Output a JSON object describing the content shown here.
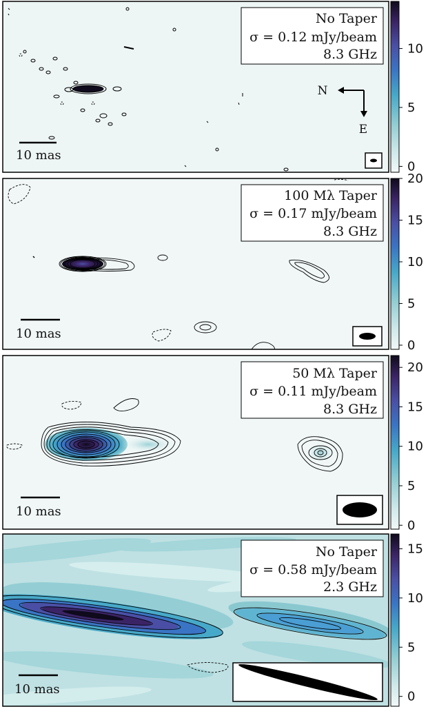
{
  "chart_data": [
    {
      "type": "heatmap",
      "panel": 1,
      "legend_lines": [
        "No Taper",
        "σ = 0.12 mJy/beam",
        "8.3 GHz"
      ],
      "scale_bar_label": "10 mas",
      "compass": {
        "north": "N",
        "east": "E"
      },
      "colorbar": {
        "ticks": [
          0,
          5,
          10
        ],
        "range": [
          -0.5,
          14
        ]
      },
      "peak_value": 13.5
    },
    {
      "type": "heatmap",
      "panel": 2,
      "legend_lines": [
        "100 Mλ Taper",
        "σ = 0.17 mJy/beam",
        "8.3 GHz"
      ],
      "scale_bar_label": "10 mas",
      "colorbar": {
        "ticks": [
          0,
          5,
          10,
          15,
          20
        ],
        "range": [
          -0.5,
          20
        ]
      },
      "peak_value": 16
    },
    {
      "type": "heatmap",
      "panel": 3,
      "legend_lines": [
        "50 Mλ Taper",
        "σ = 0.11 mJy/beam",
        "8.3 GHz"
      ],
      "scale_bar_label": "10 mas",
      "colorbar": {
        "ticks": [
          0,
          5,
          10,
          15,
          20
        ],
        "range": [
          -0.5,
          21.5
        ]
      },
      "peak_value": 21
    },
    {
      "type": "heatmap",
      "panel": 4,
      "legend_lines": [
        "No Taper",
        "σ = 0.58 mJy/beam",
        "2.3 GHz"
      ],
      "scale_bar_label": "10 mas",
      "colorbar": {
        "ticks": [
          0,
          5,
          10,
          15
        ],
        "range": [
          -1,
          16.5
        ]
      },
      "peak_value": 15
    }
  ],
  "colors": {
    "background": "#eef6f6",
    "colormap": [
      "#f2f8f8",
      "#cfe8ea",
      "#92cdd3",
      "#47a9c9",
      "#3a74c4",
      "#4a4fa5",
      "#3b2466",
      "#0f0a1c"
    ],
    "contour": "#000000"
  }
}
